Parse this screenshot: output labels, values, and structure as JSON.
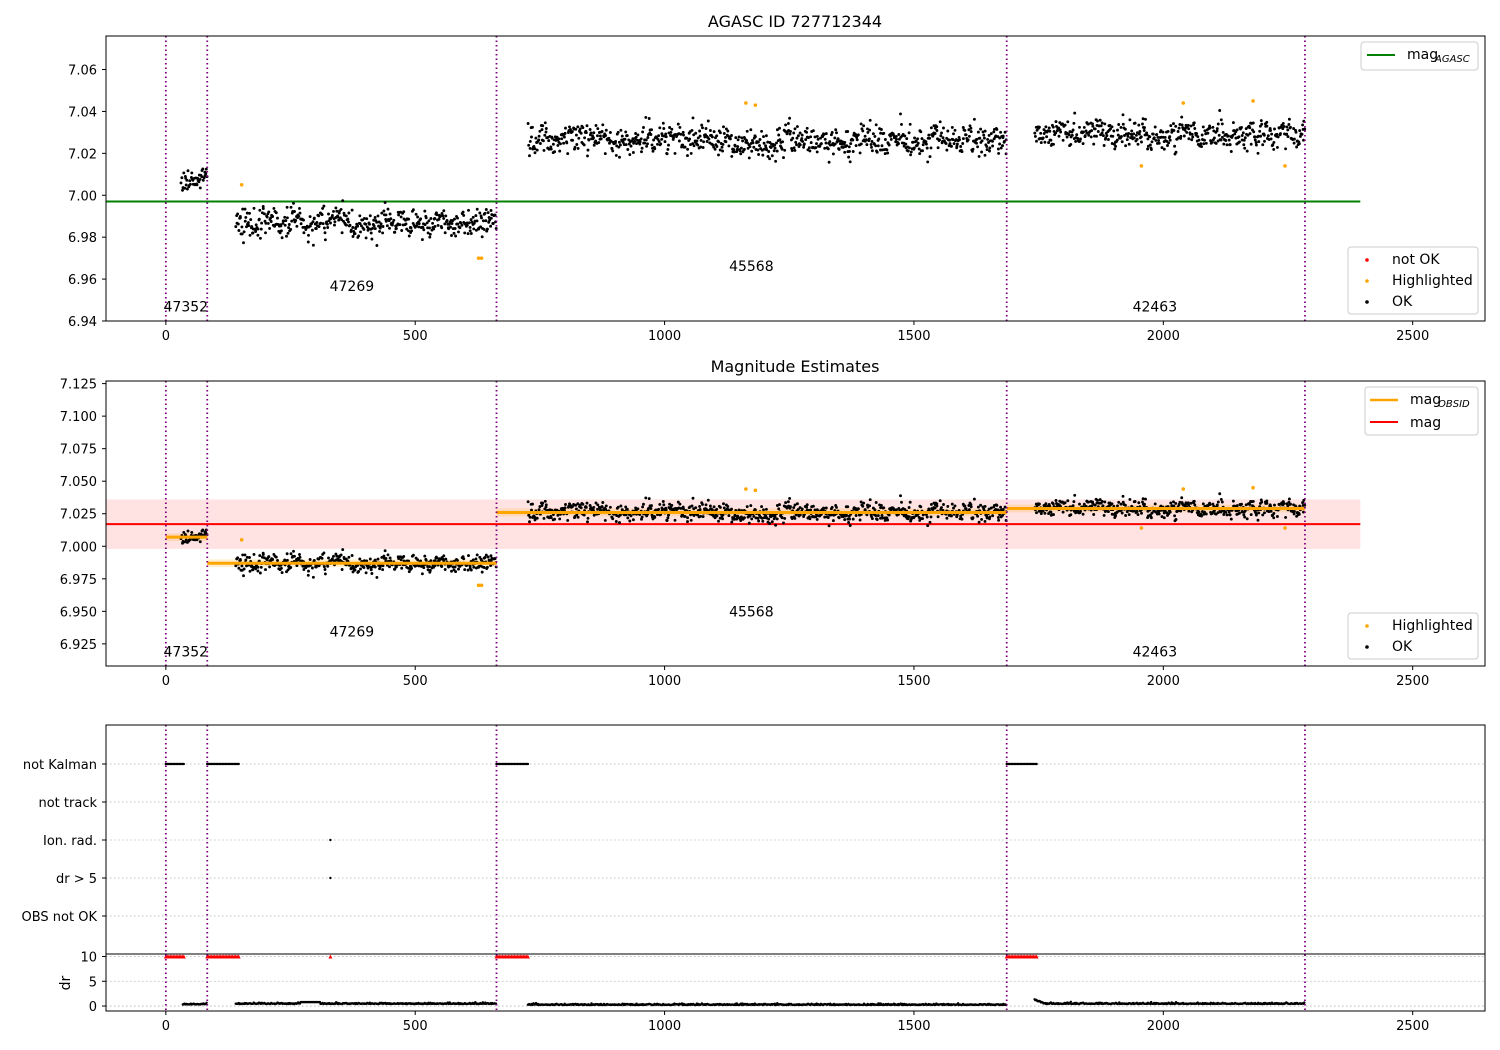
{
  "colors": {
    "ok": "#000000",
    "highlighted": "#ffa500",
    "not_ok": "#ff0000",
    "agasc_line": "#008000",
    "obsid_mag": "#ffa500",
    "mag_line": "#ff0000",
    "mag_band": "#ffc0c0",
    "obs_boundary": "#800080"
  },
  "chart_data": [
    {
      "type": "scatter",
      "title": "AGASC ID 727712344",
      "xlim": [
        -120,
        2645
      ],
      "ylim": [
        6.94,
        7.076
      ],
      "xticks": [
        0,
        500,
        1000,
        1500,
        2000,
        2500
      ],
      "yticks": [
        6.94,
        6.96,
        6.98,
        7.0,
        7.02,
        7.04,
        7.06
      ],
      "ytick_labels": [
        "6.94",
        "6.96",
        "6.98",
        "7.00",
        "7.02",
        "7.04",
        "7.06"
      ],
      "obs_boundaries": [
        0,
        83,
        663,
        1686,
        2284
      ],
      "obsid_labels": [
        {
          "text": "47352",
          "x": 40,
          "y": 6.9446
        },
        {
          "text": "47269",
          "x": 373,
          "y": 6.9543
        },
        {
          "text": "45568",
          "x": 1174,
          "y": 6.9639
        },
        {
          "text": "42463",
          "x": 1983,
          "y": 6.9446
        }
      ],
      "agasc_mag": 6.997,
      "agasc_mag_xrange": [
        -120,
        2395
      ],
      "segments": [
        {
          "x_start": 30,
          "x_end": 83,
          "mean": 7.008,
          "spread": 0.004,
          "seed": 11
        },
        {
          "x_start": 140,
          "x_end": 663,
          "mean": 6.987,
          "spread": 0.0045,
          "seed": 23
        },
        {
          "x_start": 726,
          "x_end": 1686,
          "mean": 7.026,
          "spread": 0.0045,
          "seed": 37
        },
        {
          "x_start": 1742,
          "x_end": 2284,
          "mean": 7.029,
          "spread": 0.0045,
          "seed": 53
        }
      ],
      "highlighted_points": [
        {
          "x": 152,
          "y": 7.005
        },
        {
          "x": 627,
          "y": 6.97
        },
        {
          "x": 633,
          "y": 6.97
        },
        {
          "x": 1163,
          "y": 7.044
        },
        {
          "x": 1182,
          "y": 7.043
        },
        {
          "x": 1956,
          "y": 7.014
        },
        {
          "x": 2040,
          "y": 7.044
        },
        {
          "x": 2180,
          "y": 7.045
        },
        {
          "x": 2244,
          "y": 7.014
        }
      ],
      "legend_top": [
        {
          "label": "mag",
          "sub": "AGASC"
        }
      ],
      "legend_bottom": [
        "not OK",
        "Highlighted",
        "OK"
      ]
    },
    {
      "type": "scatter",
      "title": "Magnitude Estimates",
      "xlim": [
        -120,
        2645
      ],
      "ylim": [
        6.908,
        7.127
      ],
      "xticks": [
        0,
        500,
        1000,
        1500,
        2000,
        2500
      ],
      "yticks": [
        6.925,
        6.95,
        6.975,
        7.0,
        7.025,
        7.05,
        7.075,
        7.1,
        7.125
      ],
      "ytick_labels": [
        "6.925",
        "6.950",
        "6.975",
        "7.000",
        "7.025",
        "7.050",
        "7.075",
        "7.100",
        "7.125"
      ],
      "obs_boundaries": [
        0,
        83,
        663,
        1686,
        2284
      ],
      "obsid_labels": [
        {
          "text": "47352",
          "x": 40,
          "y": 6.9152
        },
        {
          "text": "47269",
          "x": 373,
          "y": 6.9307
        },
        {
          "text": "45568",
          "x": 1174,
          "y": 6.9462
        },
        {
          "text": "42463",
          "x": 1983,
          "y": 6.9152
        }
      ],
      "mag": 7.017,
      "mag_band": [
        6.998,
        7.036
      ],
      "mag_xrange": [
        -120,
        2395
      ],
      "obsid_mags": [
        {
          "x_start": 0,
          "x_end": 83,
          "mag": 7.007
        },
        {
          "x_start": 83,
          "x_end": 663,
          "mag": 6.987
        },
        {
          "x_start": 663,
          "x_end": 1686,
          "mag": 7.026
        },
        {
          "x_start": 1686,
          "x_end": 2284,
          "mag": 7.029
        }
      ],
      "legend_top": [
        {
          "label": "mag",
          "sub": "OBSID"
        },
        {
          "label": "mag",
          "sub": ""
        }
      ],
      "legend_bottom": [
        "Highlighted",
        "OK"
      ]
    },
    {
      "type": "scatter",
      "title": "",
      "xlim": [
        -120,
        2645
      ],
      "xticks": [
        0,
        500,
        1000,
        1500,
        2000,
        2500
      ],
      "obs_boundaries": [
        0,
        83,
        663,
        1686,
        2284
      ],
      "flag_labels": [
        "not Kalman",
        "not track",
        "Ion. rad.",
        "dr > 5",
        "OBS not OK"
      ],
      "flags": {
        "not Kalman": [
          [
            0,
            38
          ],
          [
            83,
            148
          ],
          [
            663,
            728
          ],
          [
            1686,
            1748
          ]
        ],
        "not track": [],
        "Ion. rad.": [
          [
            330,
            330
          ]
        ],
        "dr > 5": [
          [
            330,
            330
          ]
        ],
        "OBS not OK": []
      },
      "dr_ylabel": "dr",
      "dr_yticks": [
        0,
        5,
        10
      ],
      "dr_ytick_labels": [
        "0",
        "5",
        "10"
      ],
      "dr_ylim": [
        -1,
        10.5
      ],
      "dr_clipped_at_10": [
        [
          0,
          38
        ],
        [
          83,
          148
        ],
        [
          330,
          330
        ],
        [
          663,
          728
        ],
        [
          1686,
          1748
        ]
      ],
      "dr_segments": [
        {
          "x_start": 34,
          "x_end": 83,
          "level": 0.3
        },
        {
          "x_start": 140,
          "x_end": 663,
          "level": 0.4
        },
        {
          "x_start": 726,
          "x_end": 1686,
          "level": 0.2
        },
        {
          "x_start": 1742,
          "x_end": 2284,
          "level": 0.4
        }
      ]
    }
  ]
}
